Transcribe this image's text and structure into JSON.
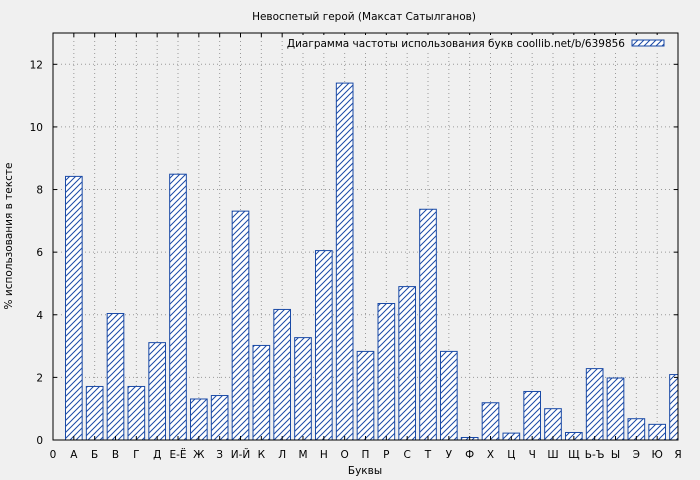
{
  "chart_data": {
    "type": "bar",
    "title": "Невоспетый герой (Максат Сатылганов)",
    "xlabel": "Буквы",
    "ylabel": "% использования в тексте",
    "legend": "Диаграмма частоты использования букв coollib.net/b/639856",
    "legend_position": "top-right",
    "grid": true,
    "ylim": [
      0,
      13
    ],
    "yticks": [
      0,
      2,
      4,
      6,
      8,
      10,
      12
    ],
    "x_tick_labels": [
      "0",
      "А",
      "Б",
      "В",
      "Г",
      "Д",
      "Е-Ё",
      "Ж",
      "З",
      "И-Й",
      "К",
      "Л",
      "М",
      "Н",
      "О",
      "П",
      "Р",
      "С",
      "Т",
      "У",
      "Ф",
      "Х",
      "Ц",
      "Ч",
      "Ш",
      "Щ",
      "Ь-Ъ",
      "Ы",
      "Э",
      "Ю",
      "Я"
    ],
    "categories": [
      "А",
      "Б",
      "В",
      "Г",
      "Д",
      "Е-Ё",
      "Ж",
      "З",
      "И-Й",
      "К",
      "Л",
      "М",
      "Н",
      "О",
      "П",
      "Р",
      "С",
      "Т",
      "У",
      "Ф",
      "Х",
      "Ц",
      "Ч",
      "Ш",
      "Щ",
      "Ь-Ъ",
      "Ы",
      "Э",
      "Ю",
      "Я"
    ],
    "values": [
      8.42,
      1.71,
      4.04,
      1.71,
      3.11,
      8.49,
      1.31,
      1.42,
      7.31,
      3.02,
      4.17,
      3.27,
      6.05,
      11.4,
      2.83,
      4.36,
      4.9,
      7.37,
      2.83,
      0.08,
      1.19,
      0.22,
      1.55,
      1.0,
      0.24,
      2.28,
      1.98,
      0.68,
      0.5,
      2.09
    ],
    "colors": {
      "bar_stroke": "#1a4aa6",
      "bar_fill": "#ffffff",
      "plot_bg": "#f0f0f0",
      "grid": "#999999"
    }
  }
}
